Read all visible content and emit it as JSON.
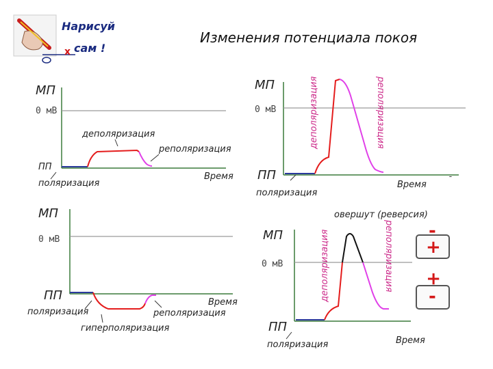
{
  "title": "Изменения потенциала покоя",
  "logo": {
    "line1": "Нарисуй",
    "line2": "сам !"
  },
  "labels": {
    "mp": "МП",
    "zero": "0 мВ",
    "pp": "ПП",
    "time": "Время",
    "polarization": "поляризация",
    "depolarization": "деполяризация",
    "repolarization": "реполяризация",
    "hyperpolarization": "гиперполяризация",
    "overshoot": "овершут (реверсия)"
  },
  "signs": {
    "minus": "-",
    "plus": "+"
  },
  "colors": {
    "baseline": "#2b3a9c",
    "depolarization": "#e41c1c",
    "repolarization": "#e040e8",
    "overshoot": "#111111",
    "axis": "#3a7a3a",
    "zero_line": "#9a9a9a",
    "sign_box": "#555555"
  }
}
